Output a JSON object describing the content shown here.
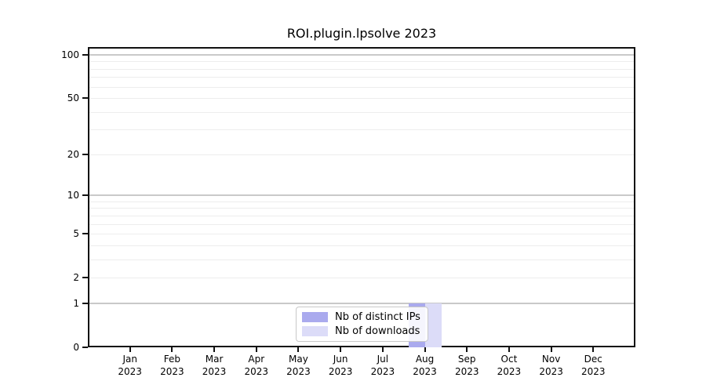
{
  "title": "ROI.plugin.lpsolve 2023",
  "chart_data": {
    "type": "bar",
    "title": "ROI.plugin.lpsolve 2023",
    "x_months": [
      "Jan",
      "Feb",
      "Mar",
      "Apr",
      "May",
      "Jun",
      "Jul",
      "Aug",
      "Sep",
      "Oct",
      "Nov",
      "Dec"
    ],
    "x_year": "2023",
    "series": [
      {
        "name": "Nb of distinct IPs",
        "color": "#aaaaee",
        "values": [
          0,
          0,
          0,
          0,
          0,
          0,
          0,
          1,
          0,
          0,
          0,
          0
        ]
      },
      {
        "name": "Nb of downloads",
        "color": "#dcdcf8",
        "values": [
          0,
          0,
          0,
          0,
          0,
          0,
          0,
          1,
          0,
          0,
          0,
          0
        ]
      }
    ],
    "y_scale": "log1p",
    "ylim": [
      0,
      101
    ],
    "y_axis_ticks": [
      0,
      1,
      2,
      5,
      10,
      20,
      50,
      100
    ],
    "y_major_gridlines": [
      1,
      10,
      100
    ],
    "y_minor_gridlines": [
      2,
      3,
      4,
      5,
      6,
      7,
      8,
      9,
      20,
      30,
      40,
      50,
      60,
      70,
      80,
      90
    ],
    "grid": "horizontal-only",
    "legend_position": "bottom-center",
    "colors": {
      "axis": "#111111",
      "major_grid": "#c9c9c9",
      "minor_grid": "#ededed",
      "background": "#ffffff"
    }
  }
}
